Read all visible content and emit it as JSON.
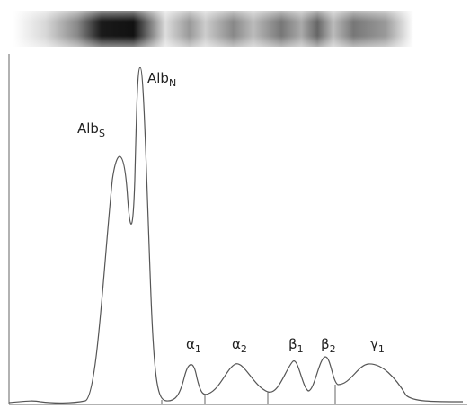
{
  "peaks": [
    {
      "base": "Alb",
      "sub": "S"
    },
    {
      "base": "Alb",
      "sub": "N"
    },
    {
      "base": "α",
      "sub": "1"
    },
    {
      "base": "α",
      "sub": "2"
    },
    {
      "base": "β",
      "sub": "1"
    },
    {
      "base": "β",
      "sub": "2"
    },
    {
      "base": "γ",
      "sub": "1"
    }
  ]
}
